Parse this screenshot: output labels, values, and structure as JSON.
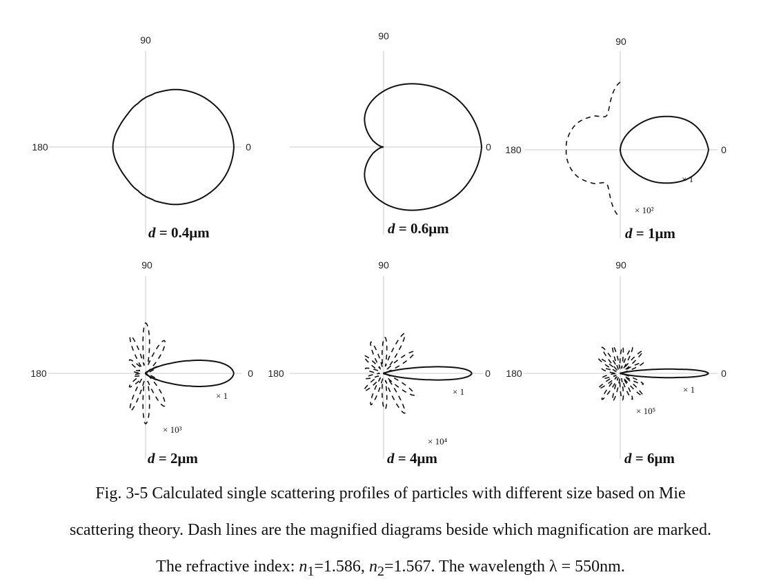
{
  "chart_data": [
    {
      "type": "polar-line",
      "label_text": "d = 0.4μm",
      "label_var": "d",
      "label_value": "= 0.4μm",
      "angle_ticks": {
        "top": "90",
        "left": "180",
        "right": "0"
      },
      "main_series": {
        "magnification": "",
        "points": [
          [
            0,
            1.0
          ],
          [
            20,
            0.96
          ],
          [
            40,
            0.87
          ],
          [
            60,
            0.75
          ],
          [
            80,
            0.62
          ],
          [
            90,
            0.56
          ],
          [
            100,
            0.5
          ],
          [
            120,
            0.42
          ],
          [
            140,
            0.38
          ],
          [
            160,
            0.37
          ],
          [
            180,
            0.37
          ]
        ]
      },
      "dashed_series": null
    },
    {
      "type": "polar-line",
      "label_text": "d = 0.6μm",
      "label_var": "d",
      "label_value": "= 0.6μm",
      "angle_ticks": {
        "top": "90",
        "left": "",
        "right": "0"
      },
      "main_series": {
        "magnification": "",
        "points": [
          [
            0,
            1.0
          ],
          [
            30,
            0.91
          ],
          [
            60,
            0.74
          ],
          [
            90,
            0.57
          ],
          [
            120,
            0.38
          ],
          [
            150,
            0.12
          ],
          [
            170,
            0.02
          ],
          [
            180,
            0.0
          ]
        ]
      },
      "dashed_series": null
    },
    {
      "type": "polar-line",
      "label_text": "d = 1μm",
      "label_var": "d",
      "label_value": "= 1μm",
      "angle_ticks": {
        "top": "90",
        "left": "180",
        "right": "0"
      },
      "main_series": {
        "magnification": "× 1",
        "points": [
          [
            0,
            1.0
          ],
          [
            20,
            0.87
          ],
          [
            40,
            0.58
          ],
          [
            60,
            0.27
          ],
          [
            80,
            0.06
          ],
          [
            90,
            0.0
          ]
        ]
      },
      "dashed_series": {
        "magnification": "× 10²",
        "points": [
          [
            90,
            0.9
          ],
          [
            110,
            0.5
          ],
          [
            130,
            0.58
          ],
          [
            150,
            0.68
          ],
          [
            170,
            0.72
          ],
          [
            180,
            0.72
          ]
        ]
      }
    },
    {
      "type": "polar-line",
      "label_text": "d = 2μm",
      "label_var": "d",
      "label_value": "= 2μm",
      "angle_ticks": {
        "top": "90",
        "left": "180",
        "right": "0"
      },
      "main_series": {
        "magnification": "× 1",
        "points": [
          [
            0,
            1.0
          ],
          [
            4,
            0.96
          ],
          [
            8,
            0.86
          ],
          [
            12,
            0.7
          ],
          [
            16,
            0.52
          ],
          [
            22,
            0.3
          ],
          [
            30,
            0.13
          ],
          [
            40,
            0.04
          ],
          [
            50,
            0.0
          ]
        ]
      },
      "dashed_series": {
        "magnification": "× 10³",
        "points": [
          [
            20,
            0.05
          ],
          [
            30,
            0.16
          ],
          [
            40,
            0.05
          ],
          [
            60,
            0.45
          ],
          [
            75,
            0.1
          ],
          [
            90,
            0.6
          ],
          [
            100,
            0.1
          ],
          [
            112,
            0.48
          ],
          [
            125,
            0.08
          ],
          [
            140,
            0.25
          ],
          [
            155,
            0.08
          ],
          [
            170,
            0.15
          ],
          [
            180,
            0.05
          ]
        ]
      }
    },
    {
      "type": "polar-line",
      "label_text": "d = 4μm",
      "label_var": "d",
      "label_value": "= 4μm",
      "angle_ticks": {
        "top": "90",
        "left": "180",
        "right": "0"
      },
      "main_series": {
        "magnification": "× 1",
        "points": [
          [
            0,
            1.0
          ],
          [
            2,
            0.96
          ],
          [
            4,
            0.86
          ],
          [
            6,
            0.7
          ],
          [
            8,
            0.52
          ],
          [
            11,
            0.3
          ],
          [
            15,
            0.13
          ],
          [
            20,
            0.03
          ],
          [
            25,
            0.0
          ]
        ]
      },
      "dashed_series": {
        "magnification": "× 10⁴",
        "points": [
          [
            20,
            0.05
          ],
          [
            35,
            0.5
          ],
          [
            50,
            0.08
          ],
          [
            62,
            0.6
          ],
          [
            75,
            0.1
          ],
          [
            88,
            0.48
          ],
          [
            100,
            0.08
          ],
          [
            112,
            0.45
          ],
          [
            125,
            0.08
          ],
          [
            138,
            0.35
          ],
          [
            152,
            0.08
          ],
          [
            165,
            0.25
          ],
          [
            180,
            0.05
          ]
        ]
      }
    },
    {
      "type": "polar-line",
      "label_text": "d = 6μm",
      "label_var": "d",
      "label_value": "= 6μm",
      "angle_ticks": {
        "top": "90",
        "left": "180",
        "right": "0"
      },
      "main_series": {
        "magnification": "× 1",
        "points": [
          [
            0,
            1.0
          ],
          [
            1,
            0.97
          ],
          [
            2,
            0.9
          ],
          [
            3,
            0.8
          ],
          [
            4,
            0.66
          ],
          [
            6,
            0.45
          ],
          [
            8,
            0.27
          ],
          [
            11,
            0.12
          ],
          [
            15,
            0.03
          ],
          [
            18,
            0.0
          ]
        ]
      },
      "dashed_series": {
        "magnification": "× 10⁵",
        "points": [
          [
            15,
            0.05
          ],
          [
            25,
            0.4
          ],
          [
            35,
            0.08
          ],
          [
            45,
            0.5
          ],
          [
            55,
            0.08
          ],
          [
            65,
            0.45
          ],
          [
            75,
            0.08
          ],
          [
            85,
            0.42
          ],
          [
            95,
            0.08
          ],
          [
            105,
            0.45
          ],
          [
            115,
            0.08
          ],
          [
            125,
            0.5
          ],
          [
            135,
            0.08
          ],
          [
            145,
            0.42
          ],
          [
            155,
            0.08
          ],
          [
            165,
            0.3
          ],
          [
            180,
            0.05
          ]
        ]
      }
    }
  ],
  "caption": {
    "line1": "Fig. 3-5    Calculated single scattering profiles of particles with different size based on Mie",
    "line2": "scattering theory. Dash lines are the magnified diagrams beside which magnification are marked.",
    "line3_prefix": "The refractive index: ",
    "n1_symbol": "n",
    "n1_sub": "1",
    "n1_value": "=1.586, ",
    "n2_symbol": "n",
    "n2_sub": "2",
    "n2_value": "=1.567. The wavelength λ = 550nm."
  }
}
